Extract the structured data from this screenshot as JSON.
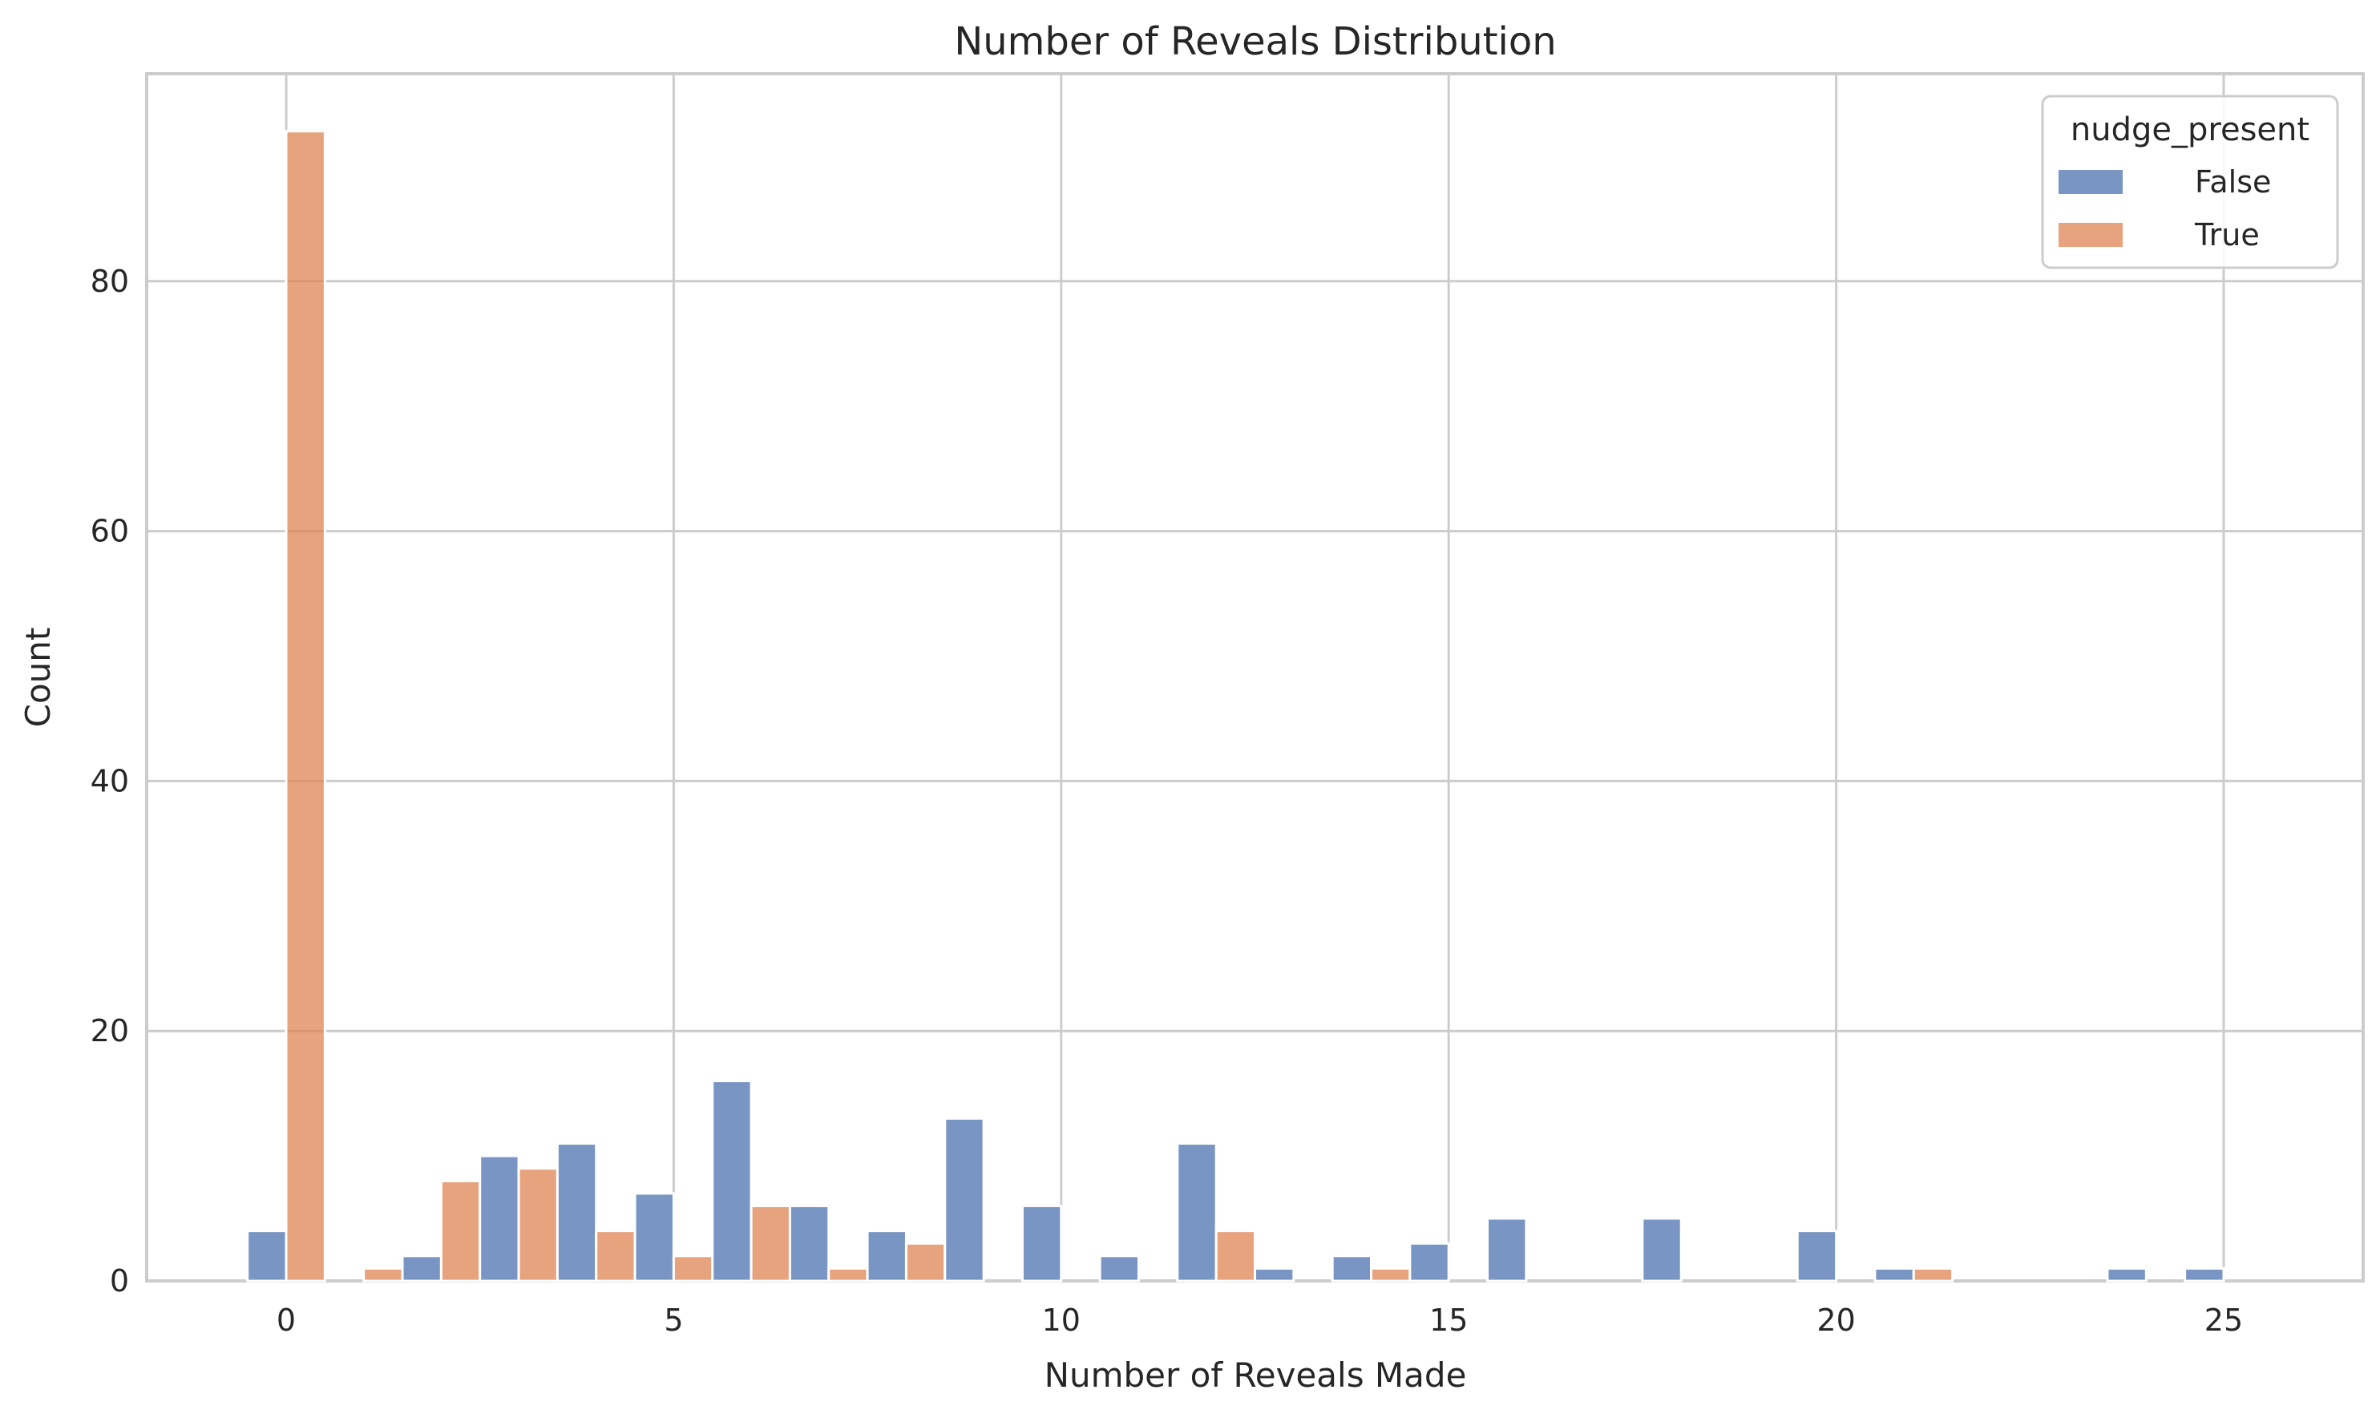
{
  "chart_data": {
    "type": "bar",
    "title": "Number of Reveals Distribution",
    "xlabel": "Number of Reveals Made",
    "ylabel": "Count",
    "xlim": [
      -1.8,
      26.8
    ],
    "ylim": [
      0,
      96.6
    ],
    "xticks": [
      0,
      5,
      10,
      15,
      20,
      25
    ],
    "yticks": [
      0,
      20,
      40,
      60,
      80
    ],
    "grid": true,
    "bin_width": 1,
    "legend": {
      "title": "nudge_present",
      "placement": "top-right",
      "entries": [
        "False",
        "True"
      ]
    },
    "bins": [
      0,
      1,
      2,
      3,
      4,
      5,
      6,
      7,
      8,
      9,
      10,
      11,
      12,
      13,
      14,
      15,
      16,
      17,
      18,
      19,
      20,
      21,
      22,
      23,
      24,
      25
    ],
    "series": [
      {
        "name": "False",
        "color": "#4c72b0",
        "values": [
          4,
          0,
          2,
          10,
          11,
          7,
          16,
          6,
          4,
          13,
          6,
          2,
          11,
          1,
          2,
          3,
          5,
          0,
          5,
          0,
          4,
          1,
          0,
          0,
          1,
          1
        ]
      },
      {
        "name": "True",
        "color": "#dd8452",
        "values": [
          92,
          1,
          8,
          9,
          4,
          2,
          6,
          1,
          3,
          0,
          0,
          0,
          4,
          0,
          1,
          0,
          0,
          0,
          0,
          0,
          0,
          1,
          0,
          0,
          0,
          0
        ]
      }
    ]
  }
}
